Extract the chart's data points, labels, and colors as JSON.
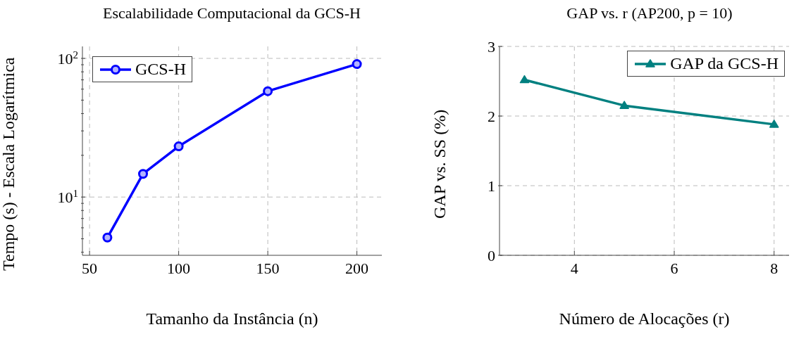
{
  "chart_data": [
    {
      "type": "line",
      "title": "Escalabilidade Computacional da GCS-H",
      "xlabel": "Tamanho da Instância (n)",
      "ylabel": "Tempo (s) - Escala Logarítmica",
      "x": [
        60,
        80,
        100,
        150,
        200
      ],
      "series": [
        {
          "name": "GCS-H",
          "color": "#0000ff",
          "values": [
            5.1,
            14.7,
            23.2,
            58,
            91
          ]
        }
      ],
      "xlim": [
        46,
        214
      ],
      "xticks": [
        50,
        100,
        150,
        200
      ],
      "ylim": [
        3.8,
        122
      ],
      "log": true,
      "yticks": [
        {
          "value": 4,
          "label": null
        },
        {
          "value": 5,
          "label": null
        },
        {
          "value": 6,
          "label": null
        },
        {
          "value": 7,
          "label": null
        },
        {
          "value": 8,
          "label": null
        },
        {
          "value": 9,
          "label": null
        },
        {
          "value": 10,
          "label": "10$^{1}$"
        },
        {
          "value": 20,
          "label": null
        },
        {
          "value": 30,
          "label": null
        },
        {
          "value": 40,
          "label": null
        },
        {
          "value": 50,
          "label": null
        },
        {
          "value": 60,
          "label": null
        },
        {
          "value": 70,
          "label": null
        },
        {
          "value": 80,
          "label": null
        },
        {
          "value": 90,
          "label": null
        },
        {
          "value": 100,
          "label": "10$^{2}$"
        }
      ],
      "grid": true,
      "legend": "top left",
      "marker": "circle",
      "line_style": "solid"
    },
    {
      "type": "line",
      "title": "GAP vs. r (AP200, p = 10)",
      "xlabel": "Número de Alocações (r)",
      "ylabel": "GAP vs. SS (%)",
      "x": [
        3,
        5,
        8
      ],
      "series": [
        {
          "name": "GAP da GCS-H",
          "color": "#008080",
          "values": [
            2.52,
            2.15,
            1.88
          ]
        }
      ],
      "xlim": [
        2.5,
        8.3
      ],
      "xticks": [
        4,
        6,
        8
      ],
      "ylim": [
        0,
        3
      ],
      "yticks": [
        0,
        1,
        2,
        3
      ],
      "grid": true,
      "legend": "top right",
      "marker": "triangle",
      "line_style": "solid"
    }
  ]
}
